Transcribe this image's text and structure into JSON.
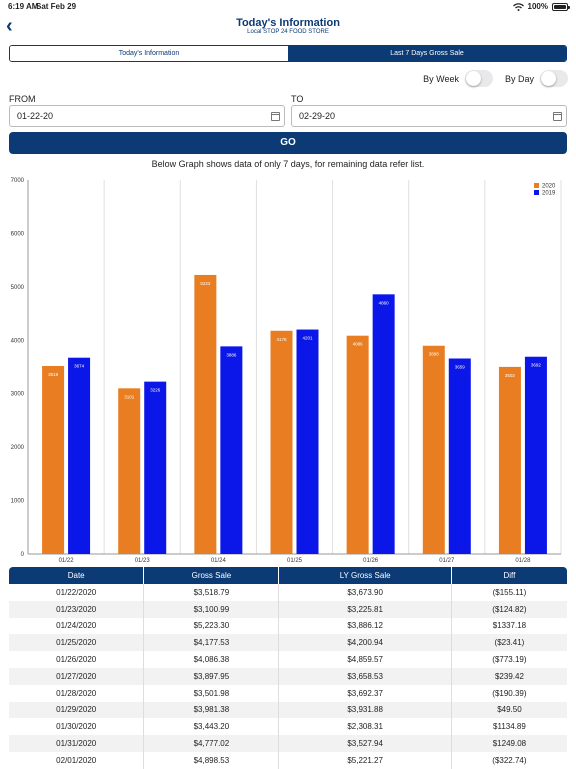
{
  "status": {
    "time": "6:19 AM",
    "date": "Sat Feb 29",
    "battery": "100%"
  },
  "nav": {
    "title": "Today's Information",
    "subtitle": "Local STOP 24 FOOD STORE"
  },
  "tabs": {
    "today": "Today's Information",
    "last7": "Last 7 Days Gross Sale"
  },
  "toggles": {
    "week": "By Week",
    "day": "By Day"
  },
  "range": {
    "from_label": "FROM",
    "from_value": "01-22-20",
    "to_label": "TO",
    "to_value": "02-29-20"
  },
  "go_label": "GO",
  "note": "Below Graph shows data of only 7 days, for remaining data refer list.",
  "colors": {
    "brand": "#0b3a75",
    "series2020": "#e87e21",
    "series2019": "#0b16e8"
  },
  "chart_data": {
    "type": "bar",
    "categories": [
      "01/22",
      "01/23",
      "01/24",
      "01/25",
      "01/26",
      "01/27",
      "01/28"
    ],
    "series": [
      {
        "name": "2020",
        "values": [
          3519,
          3101,
          5223,
          4178,
          4086,
          3898,
          3502
        ],
        "labels": [
          "3519",
          "3101",
          "5223",
          "4178",
          "4086",
          "3898",
          "3502"
        ]
      },
      {
        "name": "2019",
        "values": [
          3674,
          3226,
          3886,
          4201,
          4860,
          3659,
          3692
        ],
        "labels": [
          "3674",
          "3226",
          "3886",
          "4201",
          "4860",
          "3659",
          "3692"
        ]
      }
    ],
    "ylim": [
      0,
      7000
    ],
    "yticks": [
      "0",
      "1000",
      "2000",
      "3000",
      "4000",
      "5000",
      "6000",
      "7000"
    ],
    "legend": "top-right",
    "grid": "vertical"
  },
  "table": {
    "headers": [
      "Date",
      "Gross Sale",
      "LY Gross Sale",
      "Diff"
    ],
    "rows": [
      [
        "01/22/2020",
        "$3,518.79",
        "$3,673.90",
        "($155.11)"
      ],
      [
        "01/23/2020",
        "$3,100.99",
        "$3,225.81",
        "($124.82)"
      ],
      [
        "01/24/2020",
        "$5,223.30",
        "$3,886.12",
        "$1337.18"
      ],
      [
        "01/25/2020",
        "$4,177.53",
        "$4,200.94",
        "($23.41)"
      ],
      [
        "01/26/2020",
        "$4,086.38",
        "$4,859.57",
        "($773.19)"
      ],
      [
        "01/27/2020",
        "$3,897.95",
        "$3,658.53",
        "$239.42"
      ],
      [
        "01/28/2020",
        "$3,501.98",
        "$3,692.37",
        "($190.39)"
      ],
      [
        "01/29/2020",
        "$3,981.38",
        "$3,931.88",
        "$49.50"
      ],
      [
        "01/30/2020",
        "$3,443.20",
        "$2,308.31",
        "$1134.89"
      ],
      [
        "01/31/2020",
        "$4,777.02",
        "$3,527.94",
        "$1249.08"
      ],
      [
        "02/01/2020",
        "$4,898.53",
        "$5,221.27",
        "($322.74)"
      ]
    ]
  }
}
